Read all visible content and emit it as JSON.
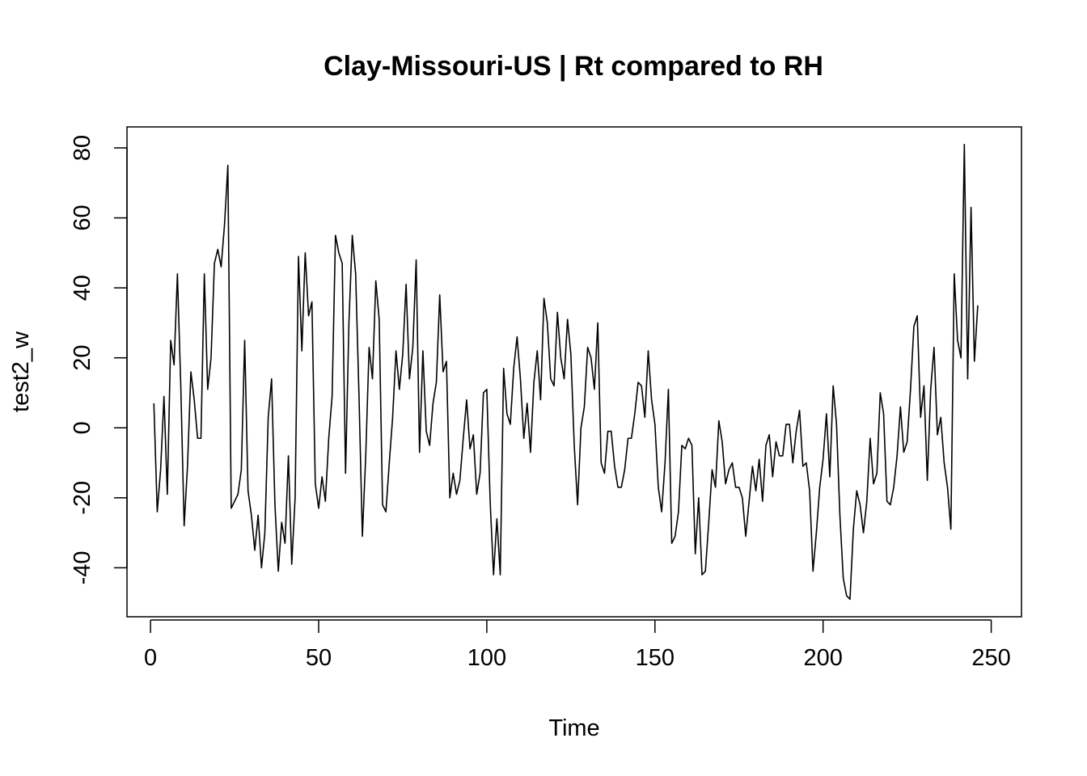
{
  "chart_data": {
    "type": "line",
    "title": "Clay-Missouri-US | Rt compared to RH",
    "xlabel": "Time",
    "ylabel": "test2_w",
    "xlim": [
      -7,
      259
    ],
    "ylim": [
      -54,
      86
    ],
    "x_ticks": [
      0,
      50,
      100,
      150,
      200,
      250
    ],
    "y_ticks": [
      -40,
      -20,
      0,
      20,
      40,
      60,
      80
    ],
    "grid": false,
    "legend": "none",
    "series": [
      {
        "x_start": 1,
        "x_step": 1,
        "values": [
          7,
          -24,
          -12,
          9,
          -19,
          25,
          18,
          44,
          12,
          -28,
          -11,
          16,
          8,
          -3,
          -3,
          44,
          11,
          20,
          47,
          51,
          46,
          58,
          75,
          -23,
          -21,
          -19,
          -12,
          25,
          -18,
          -25,
          -35,
          -25,
          -40,
          -30,
          3,
          14,
          -22,
          -41,
          -27,
          -33,
          -8,
          -39,
          -20,
          49,
          22,
          50,
          32,
          36,
          -16,
          -23,
          -14,
          -21,
          -3,
          9,
          55,
          50,
          47,
          -13,
          30,
          55,
          44,
          9,
          -31,
          -8,
          23,
          14,
          42,
          31,
          -22,
          -24,
          -10,
          3,
          22,
          11,
          21,
          41,
          14,
          23,
          48,
          -7,
          22,
          -1,
          -5,
          7,
          13,
          38,
          16,
          19,
          -20,
          -13,
          -19,
          -15,
          -3,
          8,
          -6,
          -2,
          -19,
          -13,
          10,
          11,
          -21,
          -42,
          -26,
          -42,
          17,
          4,
          1,
          17,
          26,
          14,
          -3,
          7,
          -7,
          13,
          22,
          8,
          37,
          30,
          14,
          12,
          33,
          20,
          14,
          31,
          21,
          -5,
          -22,
          0,
          6,
          23,
          20,
          11,
          30,
          -10,
          -13,
          -1,
          -1,
          -11,
          -17,
          -17,
          -12,
          -3,
          -3,
          4,
          13,
          12,
          3,
          22,
          8,
          1,
          -17,
          -24,
          -10,
          11,
          -33,
          -31,
          -24,
          -5,
          -6,
          -3,
          -5,
          -36,
          -20,
          -42,
          -41,
          -27,
          -12,
          -17,
          2,
          -4,
          -16,
          -12,
          -10,
          -17,
          -17,
          -20,
          -31,
          -21,
          -11,
          -18,
          -9,
          -21,
          -5,
          -2,
          -14,
          -4,
          -8,
          -8,
          1,
          1,
          -10,
          -1,
          5,
          -11,
          -10,
          -18,
          -41,
          -30,
          -17,
          -9,
          4,
          -14,
          12,
          1,
          -25,
          -43,
          -48,
          -49,
          -29,
          -18,
          -22,
          -30,
          -21,
          -3,
          -16,
          -13,
          10,
          4,
          -21,
          -22,
          -17,
          -8,
          6,
          -7,
          -4,
          11,
          29,
          32,
          3,
          12,
          -15,
          11,
          23,
          -2,
          3,
          -10,
          -17,
          -29,
          44,
          25,
          20,
          81,
          14,
          63,
          19,
          35
        ]
      }
    ]
  }
}
